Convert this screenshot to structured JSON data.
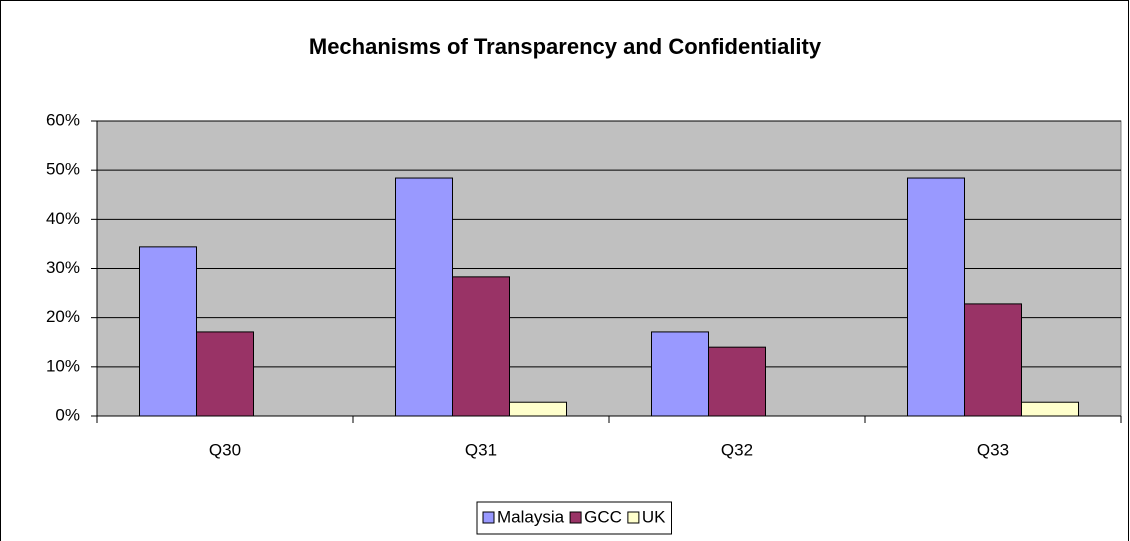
{
  "chart_data": {
    "type": "bar",
    "title": "Mechanisms of Transparency and Confidentiality",
    "categories": [
      "Q30",
      "Q31",
      "Q32",
      "Q33"
    ],
    "series": [
      {
        "name": "Malaysia",
        "color": "#9999ff",
        "values": [
          34.4,
          48.4,
          17.1,
          48.4
        ]
      },
      {
        "name": "GCC",
        "color": "#993366",
        "values": [
          17.1,
          28.3,
          14.0,
          22.8
        ]
      },
      {
        "name": "UK",
        "color": "#ffffcc",
        "values": [
          0,
          2.8,
          0,
          2.8
        ]
      }
    ],
    "ylim": [
      0,
      60
    ],
    "yticks": [
      {
        "value": 0,
        "label": "0%"
      },
      {
        "value": 10,
        "label": "10%"
      },
      {
        "value": 20,
        "label": "20%"
      },
      {
        "value": 30,
        "label": "30%"
      },
      {
        "value": 40,
        "label": "40%"
      },
      {
        "value": 50,
        "label": "50%"
      },
      {
        "value": 60,
        "label": "60%"
      }
    ],
    "grid": true,
    "legend": "bottom",
    "plot_background": "#c0c0c0"
  }
}
